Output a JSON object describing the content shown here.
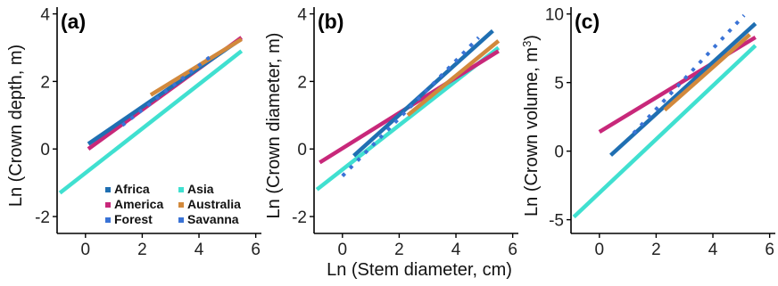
{
  "figure": {
    "xlabel": "Ln (Stem diameter, cm)"
  },
  "legend": {
    "items": [
      {
        "key": "africa",
        "label": "Africa",
        "color": "#1f6fb2",
        "style": "solid"
      },
      {
        "key": "asia",
        "label": "Asia",
        "color": "#40e0d0",
        "style": "solid"
      },
      {
        "key": "america",
        "label": "America",
        "color": "#c8287a",
        "style": "solid"
      },
      {
        "key": "australia",
        "label": "Australia",
        "color": "#d2893c",
        "style": "solid"
      },
      {
        "key": "forest",
        "label": "Forest",
        "color": "#3a73d6",
        "style": "solid"
      },
      {
        "key": "savanna",
        "label": "Savanna",
        "color": "#3a73d6",
        "style": "dotted"
      }
    ]
  },
  "chart_data": [
    {
      "type": "line",
      "panel_label": "(a)",
      "ylabel": "Ln (Crown depth, m)",
      "xlim": [
        -1,
        6.2
      ],
      "ylim": [
        -2.5,
        4.2
      ],
      "xticks": [
        0,
        2,
        4,
        6
      ],
      "yticks": [
        -2,
        0,
        2,
        4
      ],
      "grid": false,
      "legend_position": "bottom-right",
      "series": [
        {
          "key": "asia",
          "x": [
            -0.9,
            5.5
          ],
          "y": [
            -1.3,
            2.9
          ]
        },
        {
          "key": "america",
          "x": [
            0.1,
            5.5
          ],
          "y": [
            0.0,
            3.3
          ]
        },
        {
          "key": "africa",
          "x": [
            0.1,
            5.3
          ],
          "y": [
            0.15,
            3.15
          ]
        },
        {
          "key": "australia",
          "x": [
            2.3,
            5.5
          ],
          "y": [
            1.6,
            3.25
          ]
        },
        {
          "key": "savanna",
          "x": [
            1.3,
            4.5
          ],
          "y": [
            0.7,
            2.8
          ]
        }
      ]
    },
    {
      "type": "line",
      "panel_label": "(b)",
      "ylabel": "Ln (Crown diameter, m)",
      "xlim": [
        -1,
        6.2
      ],
      "ylim": [
        -2.5,
        4.2
      ],
      "xticks": [
        0,
        2,
        4,
        6
      ],
      "yticks": [
        -2,
        0,
        2,
        4
      ],
      "grid": false,
      "series": [
        {
          "key": "asia",
          "x": [
            -0.9,
            5.5
          ],
          "y": [
            -1.2,
            3.0
          ]
        },
        {
          "key": "america",
          "x": [
            -0.8,
            5.5
          ],
          "y": [
            -0.4,
            2.9
          ]
        },
        {
          "key": "africa",
          "x": [
            0.4,
            5.3
          ],
          "y": [
            -0.2,
            3.5
          ]
        },
        {
          "key": "australia",
          "x": [
            2.3,
            5.5
          ],
          "y": [
            1.0,
            3.2
          ]
        },
        {
          "key": "savanna",
          "x": [
            0.0,
            4.8
          ],
          "y": [
            -0.8,
            3.3
          ]
        }
      ]
    },
    {
      "type": "line",
      "panel_label": "(c)",
      "ylabel": "Ln (Crown volume,  m",
      "ylabel_superscript": "3",
      "ylabel_suffix": ")",
      "xlim": [
        -1,
        6.2
      ],
      "ylim": [
        -6.0,
        10.5
      ],
      "xticks": [
        0,
        2,
        4,
        6
      ],
      "yticks": [
        -5,
        0,
        5,
        10
      ],
      "grid": false,
      "series": [
        {
          "key": "asia",
          "x": [
            -0.9,
            5.5
          ],
          "y": [
            -4.8,
            7.7
          ]
        },
        {
          "key": "america",
          "x": [
            0.0,
            5.5
          ],
          "y": [
            1.4,
            8.3
          ]
        },
        {
          "key": "africa",
          "x": [
            0.4,
            5.5
          ],
          "y": [
            -0.3,
            9.3
          ]
        },
        {
          "key": "australia",
          "x": [
            2.3,
            5.3
          ],
          "y": [
            3.0,
            8.5
          ]
        },
        {
          "key": "savanna",
          "x": [
            1.2,
            5.1
          ],
          "y": [
            1.3,
            9.9
          ]
        }
      ]
    }
  ]
}
